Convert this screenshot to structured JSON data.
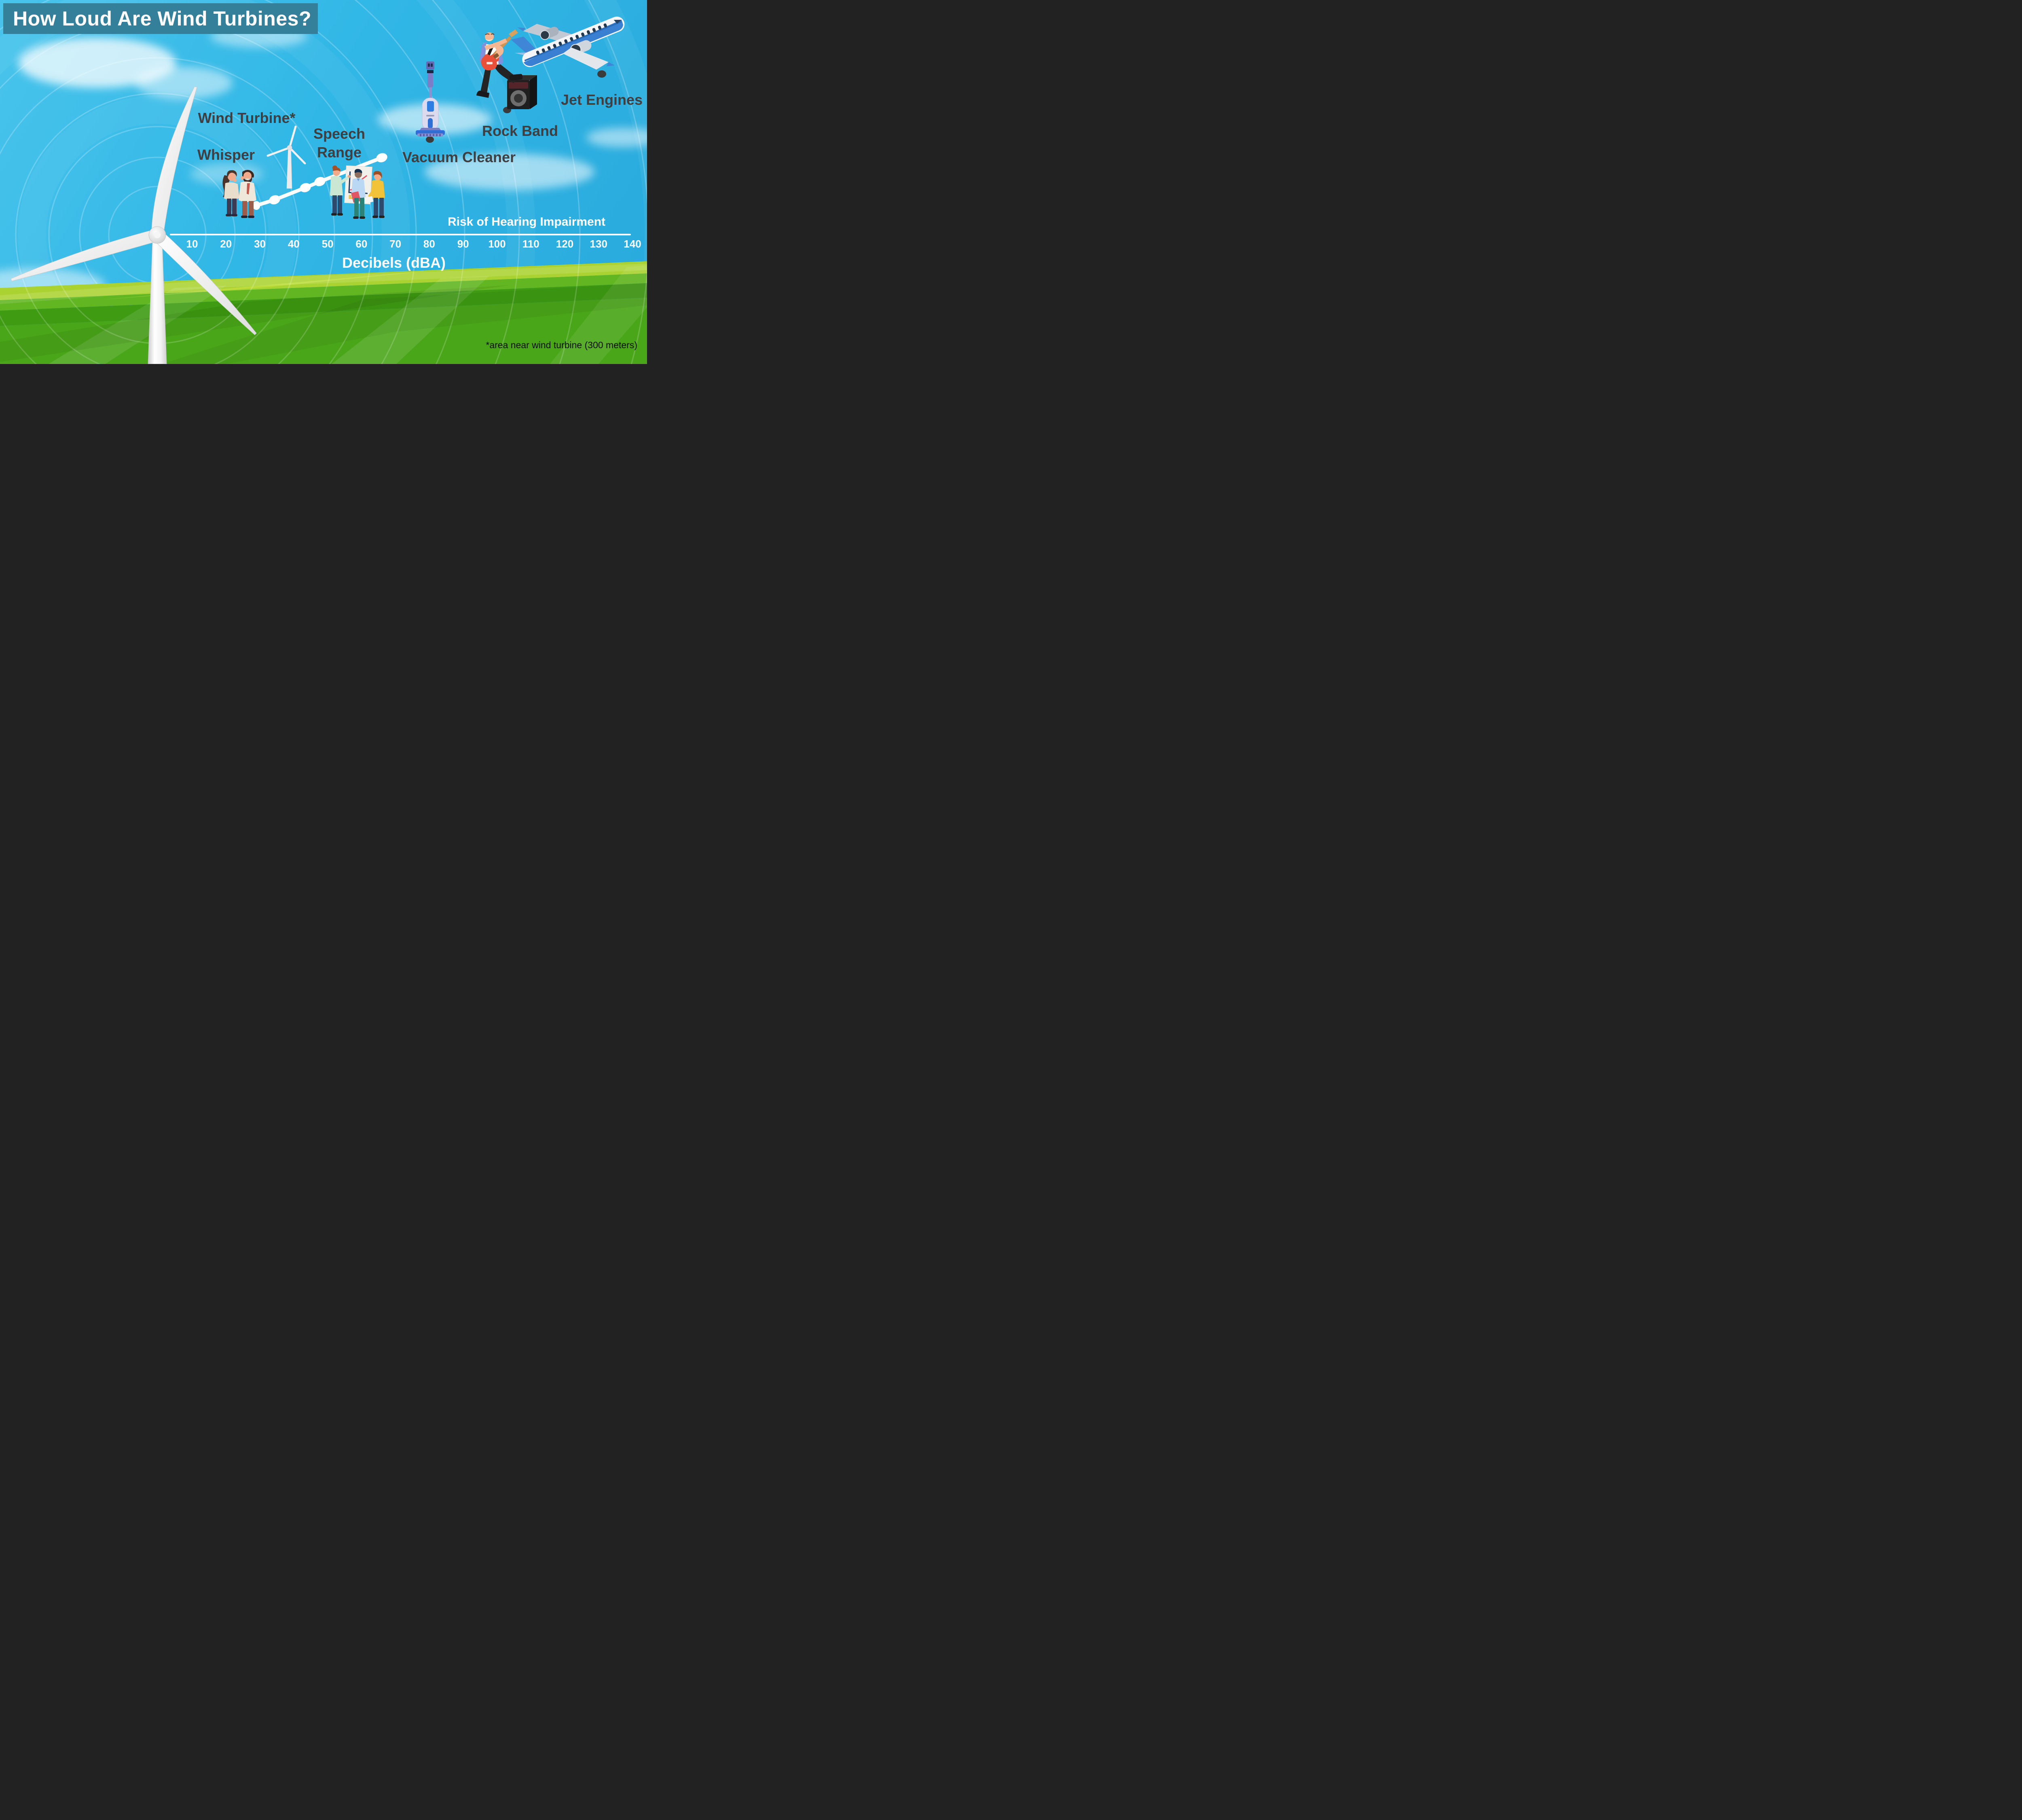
{
  "title": "How Loud Are Wind Turbines?",
  "footnote": "*area near wind turbine (300 meters)",
  "axis": {
    "unit_label": "Decibels (dBA)",
    "risk_label": "Risk of Hearing Impairment",
    "ticks": [
      10,
      20,
      30,
      40,
      50,
      60,
      70,
      80,
      90,
      100,
      110,
      120,
      130,
      140
    ]
  },
  "labels": {
    "whisper": "Whisper",
    "wind_turbine": "Wind Turbine*",
    "speech_line1": "Speech",
    "speech_line2": "Range",
    "vacuum": "Vacuum Cleaner",
    "rock_band": "Rock Band",
    "jet_engines": "Jet Engines"
  },
  "colors": {
    "banner_teal": "#34809b",
    "sky_blue": "#31b7e6",
    "grass_light": "#aad331",
    "grass_mid": "#4aa619",
    "grass_dark": "#3e9b12",
    "text_dark": "#3f3f42",
    "dot_dark": "#3b3b3b",
    "white": "#ffffff"
  },
  "icons": {
    "big_wind_turbine": "wind-turbine-icon",
    "small_wind_turbine": "wind-turbine-icon",
    "whisper_couple": "whispering-people-icon",
    "speech_group": "people-presentation-icon",
    "vacuum": "vacuum-cleaner-icon",
    "rock_band": "guitarist-amp-icon",
    "airplane": "jet-airplane-icon"
  },
  "chart_data": {
    "type": "scatter",
    "title": "How Loud Are Wind Turbines?",
    "xlabel": "Decibels (dBA)",
    "xlim": [
      10,
      140
    ],
    "x_ticks": [
      10,
      20,
      30,
      40,
      50,
      60,
      70,
      80,
      90,
      100,
      110,
      120,
      130,
      140
    ],
    "grid": false,
    "legend_position": "none",
    "annotations": [
      "Risk of Hearing Impairment",
      "*area near wind turbine (300 meters)"
    ],
    "points": [
      {
        "label": "Whisper",
        "dBA": 29
      },
      {
        "label": "Wind Turbine (area near turbine, 300 meters)",
        "dBA": 43
      },
      {
        "label": "Speech Range",
        "dBA_min": 48,
        "dBA_max": 66
      },
      {
        "label": "Vacuum Cleaner",
        "dBA": 80
      },
      {
        "label": "Rock Band",
        "dBA": 103
      },
      {
        "label": "Jet Engines",
        "dBA": 131
      }
    ],
    "progression_line_dBA": [
      29,
      34,
      43,
      48,
      66
    ]
  }
}
